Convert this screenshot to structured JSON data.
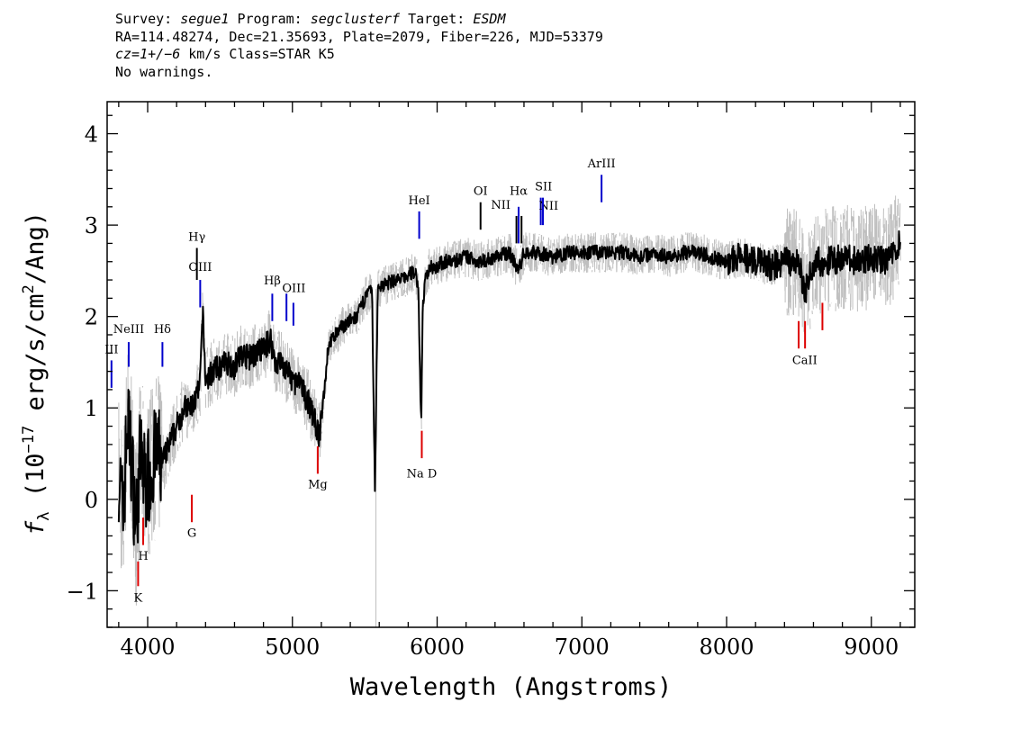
{
  "header": {
    "survey_label": "Survey: ",
    "survey": "segue1",
    "program_label": " Program: ",
    "program": "segclusterf",
    "target_label": " Target: ",
    "target": "ESDM",
    "line2": "RA=114.48274, Dec=21.35693, Plate=2079, Fiber=226, MJD=53379",
    "cz_label": "cz=",
    "cz_value": "1+/−6",
    "cz_rest": " km/s Class=STAR K5",
    "line4": "No warnings."
  },
  "colors": {
    "flux": "#000000",
    "error": "#bfbfbf",
    "emission": "#0000cc",
    "absorption": "#dd0000",
    "neutral": "#000000"
  },
  "chart_data": {
    "type": "line",
    "xlabel": "Wavelength (Angstroms)",
    "ylabel": "f_λ (10^-17 erg/s/cm²/Ang)",
    "ylabel_parts": {
      "f": "f",
      "sub": "λ",
      "pre": " (10",
      "exp": "−17",
      "mid": " erg/s/cm",
      "exp2": "2",
      "post": "/Ang)"
    },
    "xlim": [
      3720,
      9300
    ],
    "ylim": [
      -1.4,
      4.35
    ],
    "x_ticks": [
      4000,
      5000,
      6000,
      7000,
      8000,
      9000
    ],
    "x_tick_labels": [
      "4000",
      "5000",
      "6000",
      "7000",
      "8000",
      "9000"
    ],
    "y_ticks": [
      -1,
      0,
      1,
      2,
      3,
      4
    ],
    "y_tick_labels": [
      "−1",
      "0",
      "1",
      "2",
      "3",
      "4"
    ],
    "grid": false,
    "series": [
      {
        "role": "flux",
        "x": [
          3800,
          3830,
          3860,
          3890,
          3920,
          3950,
          3980,
          4020,
          4060,
          4100,
          4150,
          4200,
          4250,
          4300,
          4330,
          4360,
          4380,
          4400,
          4450,
          4500,
          4550,
          4600,
          4650,
          4700,
          4750,
          4800,
          4850,
          4880,
          4920,
          4960,
          5000,
          5050,
          5100,
          5150,
          5170,
          5190,
          5250,
          5300,
          5350,
          5400,
          5450,
          5500,
          5550,
          5570,
          5590,
          5620,
          5650,
          5700,
          5750,
          5800,
          5850,
          5870,
          5890,
          5900,
          5920,
          5950,
          6000,
          6050,
          6100,
          6200,
          6300,
          6400,
          6500,
          6563,
          6600,
          6700,
          6800,
          6900,
          7000,
          7100,
          7200,
          7300,
          7400,
          7500,
          7600,
          7700,
          7800,
          7900,
          8000,
          8100,
          8200,
          8300,
          8400,
          8500,
          8540,
          8600,
          8700,
          8800,
          8900,
          9000,
          9100,
          9200
        ],
        "y": [
          0.3,
          -0.2,
          0.9,
          0.4,
          -0.3,
          0.5,
          0.2,
          0.3,
          0.5,
          0.4,
          0.6,
          0.8,
          1.0,
          1.0,
          1.1,
          1.2,
          2.05,
          1.3,
          1.4,
          1.45,
          1.5,
          1.45,
          1.6,
          1.55,
          1.6,
          1.65,
          1.75,
          1.5,
          1.5,
          1.4,
          1.3,
          1.25,
          1.1,
          0.9,
          0.75,
          0.7,
          1.7,
          1.8,
          1.9,
          1.95,
          2.0,
          2.2,
          2.3,
          0.1,
          2.3,
          2.35,
          2.35,
          2.4,
          2.4,
          2.45,
          2.5,
          2.3,
          0.8,
          2.1,
          2.4,
          2.55,
          2.55,
          2.6,
          2.6,
          2.65,
          2.6,
          2.65,
          2.7,
          2.5,
          2.7,
          2.7,
          2.65,
          2.7,
          2.7,
          2.7,
          2.7,
          2.7,
          2.65,
          2.7,
          2.65,
          2.7,
          2.7,
          2.65,
          2.6,
          2.65,
          2.6,
          2.55,
          2.6,
          2.6,
          2.25,
          2.6,
          2.6,
          2.65,
          2.6,
          2.65,
          2.6,
          2.8
        ]
      }
    ],
    "annotations": [
      {
        "label": "III",
        "x": 3750,
        "y1": 1.22,
        "y2": 1.52,
        "ly": 1.6,
        "kind": "emission"
      },
      {
        "label": "NeIII",
        "x": 3869,
        "y1": 1.45,
        "y2": 1.72,
        "ly": 1.82,
        "kind": "emission"
      },
      {
        "label": "Hδ",
        "x": 4102,
        "y1": 1.45,
        "y2": 1.72,
        "ly": 1.82,
        "kind": "emission"
      },
      {
        "label": "Hγ",
        "x": 4340,
        "y1": 2.4,
        "y2": 2.75,
        "ly": 2.83,
        "kind": "neutral"
      },
      {
        "label": "OIII",
        "x": 4363,
        "y1": 2.1,
        "y2": 2.4,
        "ly": 2.5,
        "kind": "emission"
      },
      {
        "label": "Hβ",
        "x": 4861,
        "y1": 1.95,
        "y2": 2.25,
        "ly": 2.35,
        "kind": "emission"
      },
      {
        "label": "OIII",
        "x": 4959,
        "y1": 1.95,
        "y2": 2.25,
        "ly": 2.27,
        "kind": "emission",
        "lx": 5010
      },
      {
        "label": "",
        "x": 5007,
        "y1": 1.9,
        "y2": 2.15,
        "kind": "emission"
      },
      {
        "label": "HeI",
        "x": 5876,
        "y1": 2.85,
        "y2": 3.15,
        "ly": 3.23,
        "kind": "emission"
      },
      {
        "label": "OI",
        "x": 6300,
        "y1": 2.95,
        "y2": 3.25,
        "ly": 3.33,
        "kind": "neutral"
      },
      {
        "label": "NII",
        "x": 6548,
        "y1": 2.8,
        "y2": 3.1,
        "ly": 3.18,
        "kind": "neutral",
        "lx": 6440
      },
      {
        "label": "Hα",
        "x": 6563,
        "y1": 2.8,
        "y2": 3.2,
        "ly": 3.33,
        "kind": "emission"
      },
      {
        "label": "",
        "x": 6583,
        "y1": 2.8,
        "y2": 3.1,
        "kind": "neutral"
      },
      {
        "label": "NII",
        "x": 6716,
        "y1": 3.0,
        "y2": 3.3,
        "ly": 3.17,
        "kind": "emission",
        "lx": 6770
      },
      {
        "label": "SII",
        "x": 6731,
        "y1": 3.0,
        "y2": 3.3,
        "ly": 3.38,
        "kind": "emission",
        "lx": 6735
      },
      {
        "label": "ArIII",
        "x": 7136,
        "y1": 3.25,
        "y2": 3.55,
        "ly": 3.63,
        "kind": "emission"
      },
      {
        "label": "K",
        "x": 3934,
        "y1": -0.68,
        "y2": -0.95,
        "ly": -1.12,
        "kind": "absorption"
      },
      {
        "label": "H",
        "x": 3969,
        "y1": -0.2,
        "y2": -0.5,
        "ly": -0.66,
        "kind": "absorption"
      },
      {
        "label": "G",
        "x": 4305,
        "y1": 0.05,
        "y2": -0.25,
        "ly": -0.41,
        "kind": "absorption"
      },
      {
        "label": "Mg",
        "x": 5175,
        "y1": 0.58,
        "y2": 0.28,
        "ly": 0.12,
        "kind": "absorption"
      },
      {
        "label": "Na  D",
        "x": 5894,
        "y1": 0.75,
        "y2": 0.45,
        "ly": 0.24,
        "kind": "absorption"
      },
      {
        "label": "CaII",
        "x": 8498,
        "y1": 1.95,
        "y2": 1.65,
        "ly": 1.48,
        "kind": "absorption",
        "lx": 8540
      },
      {
        "label": "",
        "x": 8542,
        "y1": 1.95,
        "y2": 1.65,
        "kind": "absorption"
      },
      {
        "label": "",
        "x": 8662,
        "y1": 2.15,
        "y2": 1.85,
        "kind": "absorption"
      }
    ]
  }
}
